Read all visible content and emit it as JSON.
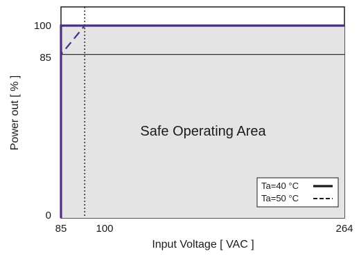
{
  "chart_data": {
    "type": "line",
    "xlabel": "Input Voltage [ VAC ]",
    "ylabel": "Power out [ % ]",
    "xlim": [
      85,
      264
    ],
    "ylim": [
      0,
      100
    ],
    "x_ticks": [
      85,
      100,
      264
    ],
    "y_ticks": [
      0,
      85,
      100
    ],
    "grid": false,
    "region_label": "Safe Operating Area",
    "reference_lines": {
      "vertical_x": 100,
      "horizontal_y": 85
    },
    "series": [
      {
        "name": "Ta=40 °C",
        "style": "solid",
        "x": [
          85,
          85,
          264
        ],
        "y": [
          0,
          100,
          100
        ]
      },
      {
        "name": "Ta=50 °C",
        "style": "dashed",
        "x": [
          85,
          85,
          100,
          264
        ],
        "y": [
          0,
          85,
          100,
          100
        ]
      }
    ],
    "legend_position": "bottom-right",
    "colors": {
      "series_line": "#4b2d86",
      "area_fill": "#e4e4e4",
      "axis": "#1a1a1a"
    }
  }
}
